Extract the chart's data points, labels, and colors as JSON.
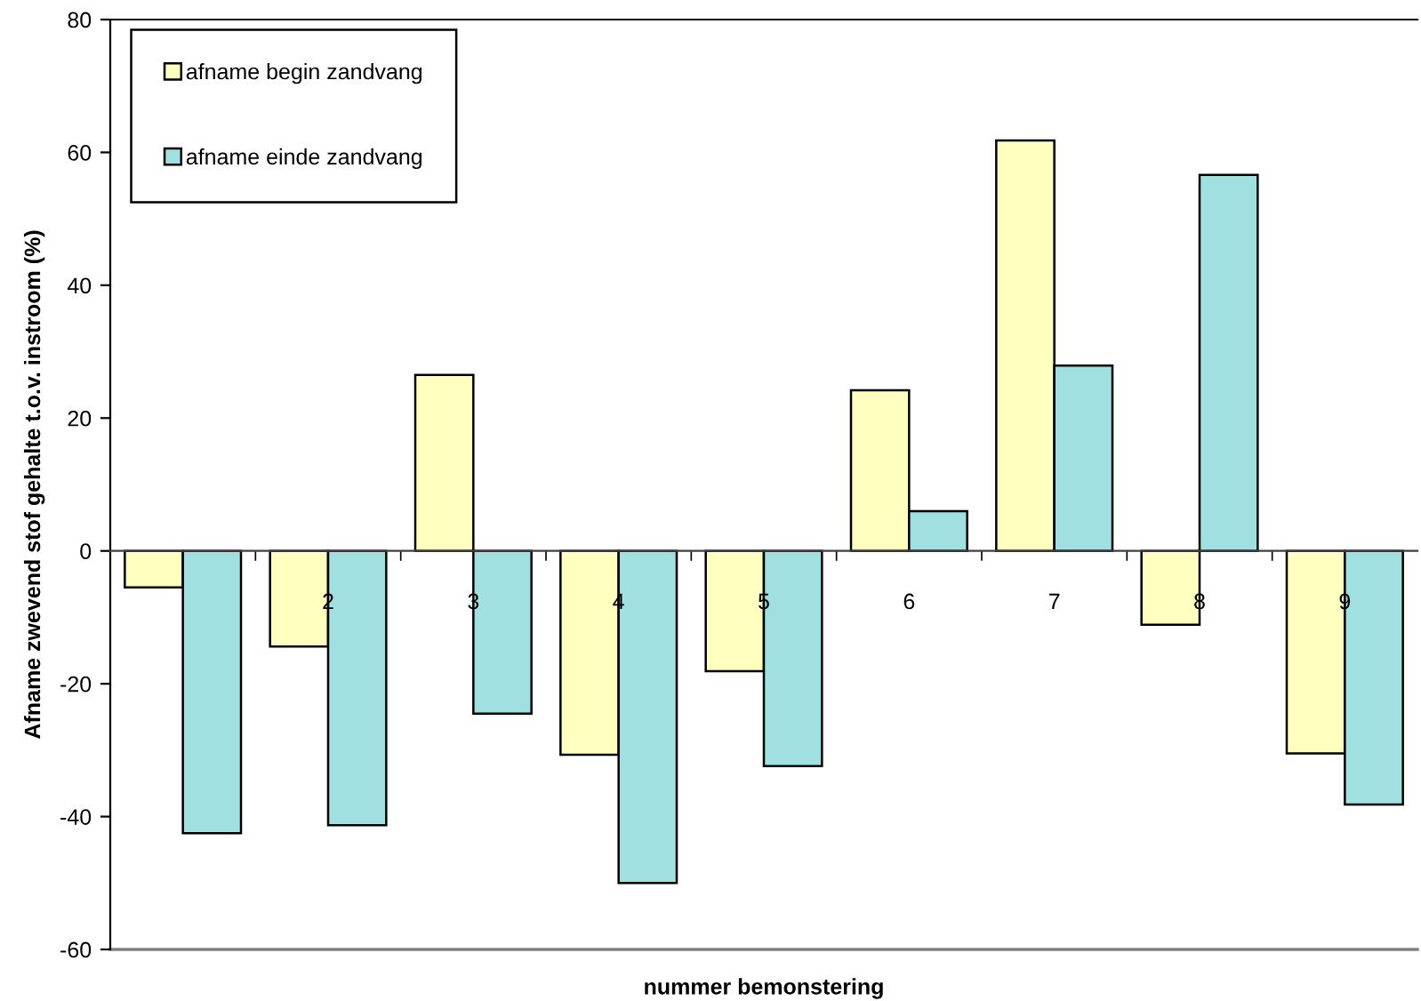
{
  "chart_data": {
    "type": "bar",
    "xlabel": "nummer bemonstering",
    "ylabel": "Afname zwevend stof gehalte t.o.v. instroom (%)",
    "categories": [
      null,
      "2",
      "3",
      "4",
      "5",
      "6",
      "7",
      "8",
      "9"
    ],
    "series": [
      {
        "name": "afname begin zandvang",
        "color": "#ffffc0",
        "values": [
          -5.5,
          -14.4,
          26.5,
          -30.7,
          -18.1,
          24.2,
          61.8,
          -11.1,
          -30.5
        ]
      },
      {
        "name": "afname einde zandvang",
        "color": "#a0e0e0",
        "values": [
          -42.5,
          -41.3,
          -24.5,
          -50.0,
          -32.4,
          6.0,
          27.9,
          56.6,
          -38.2
        ]
      }
    ],
    "ylim": [
      -60,
      80
    ],
    "yticks": [
      -60,
      -40,
      -20,
      0,
      20,
      40,
      60,
      80
    ],
    "legend": "top left"
  }
}
